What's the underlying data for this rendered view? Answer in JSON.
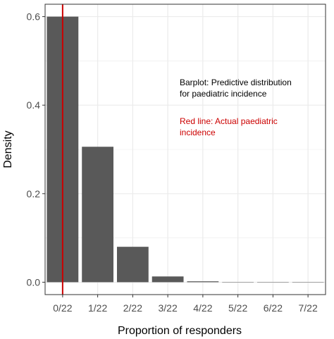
{
  "chart_data": {
    "type": "bar",
    "categories": [
      "0/22",
      "1/22",
      "2/22",
      "3/22",
      "4/22",
      "5/22",
      "6/22",
      "7/22"
    ],
    "values": [
      0.6,
      0.306,
      0.08,
      0.013,
      0.002,
      0.0005,
      0.0001,
      2e-05
    ],
    "xlabel": "Proportion of responders",
    "ylabel": "Density",
    "ylim": [
      -0.028,
      0.628
    ],
    "yticks": [
      0.0,
      0.2,
      0.4,
      0.6
    ],
    "ytick_labels": [
      "0.0",
      "0.2",
      "0.4",
      "0.6"
    ],
    "grid": true,
    "bar_color": "#595959",
    "background_color": "#ffffff",
    "grid_color": "#ebebeb",
    "reference_line": {
      "category": "0/22",
      "color": "#cc0000"
    },
    "annotations": [
      {
        "lines": [
          "Barplot: Predictive distribution",
          "for paediatric incidence"
        ],
        "color": "#000000",
        "position": "upper-right"
      },
      {
        "lines": [
          "Red line: Actual paediatric",
          "incidence"
        ],
        "color": "#cc0000",
        "position": "upper-right"
      }
    ]
  }
}
